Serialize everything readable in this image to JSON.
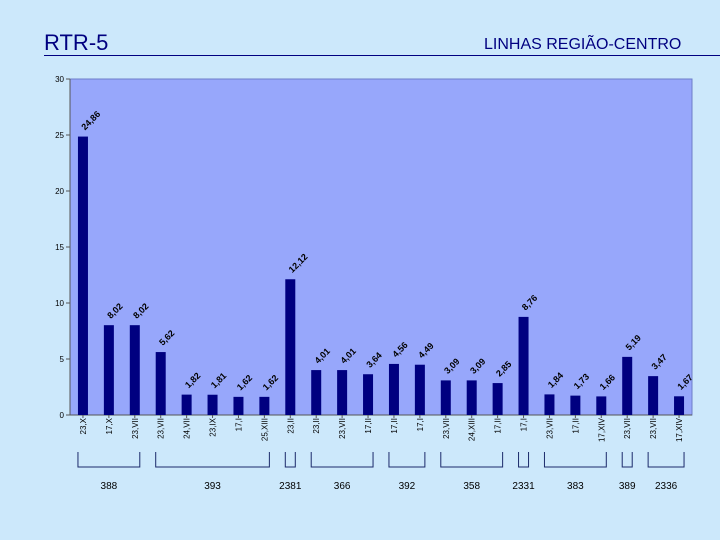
{
  "slide": {
    "title": "RTR-5",
    "subtitle": "LINHAS REGIÃO-CENTRO"
  },
  "colors": {
    "plot_bg": "#97a7fb",
    "bar": "#000080",
    "text": "#000080"
  },
  "chart_data": {
    "type": "bar",
    "title": "",
    "xlabel": "",
    "ylabel": "",
    "ylim": [
      0,
      30
    ],
    "yticks": [
      0,
      5,
      10,
      15,
      20,
      25,
      30
    ],
    "grid": false,
    "categories": [
      "23,X",
      "17,X",
      "23,VII",
      "23,VII",
      "24,VII",
      "23,IX",
      "17,I",
      "25,XIII",
      "23,II",
      "23,II",
      "23,VII",
      "17,II",
      "17,II",
      "17,I",
      "23,VII",
      "24,XIII",
      "17,II",
      "17,I",
      "23,VII",
      "17,II",
      "17,XIV",
      "23,VII",
      "23,VII",
      "17,XIV"
    ],
    "values": [
      24.86,
      8.02,
      8.02,
      5.62,
      1.82,
      1.81,
      1.62,
      1.62,
      12.12,
      4.01,
      4.01,
      3.64,
      4.56,
      4.49,
      3.09,
      3.09,
      2.85,
      8.76,
      1.84,
      1.73,
      1.66,
      5.19,
      3.47,
      1.67
    ],
    "labels": [
      "24,86",
      "8,02",
      "8,02",
      "5,62",
      "1,82",
      "1,81",
      "1,62",
      "1,62",
      "12,12",
      "4,01",
      "4,01",
      "3,64",
      "4,56",
      "4,49",
      "3,09",
      "3,09",
      "2,85",
      "8,76",
      "1,84",
      "1,73",
      "1,66",
      "5,19",
      "3,47",
      "1,67"
    ],
    "groups": [
      {
        "label": "388",
        "start": 0,
        "end": 2
      },
      {
        "label": "393",
        "start": 3,
        "end": 7
      },
      {
        "label": "2381",
        "start": 8,
        "end": 8
      },
      {
        "label": "366",
        "start": 9,
        "end": 11
      },
      {
        "label": "392",
        "start": 12,
        "end": 13
      },
      {
        "label": "358",
        "start": 14,
        "end": 16
      },
      {
        "label": "2331",
        "start": 17,
        "end": 17
      },
      {
        "label": "383",
        "start": 18,
        "end": 20
      },
      {
        "label": "389",
        "start": 21,
        "end": 21
      },
      {
        "label": "2336",
        "start": 22,
        "end": 23
      }
    ]
  }
}
